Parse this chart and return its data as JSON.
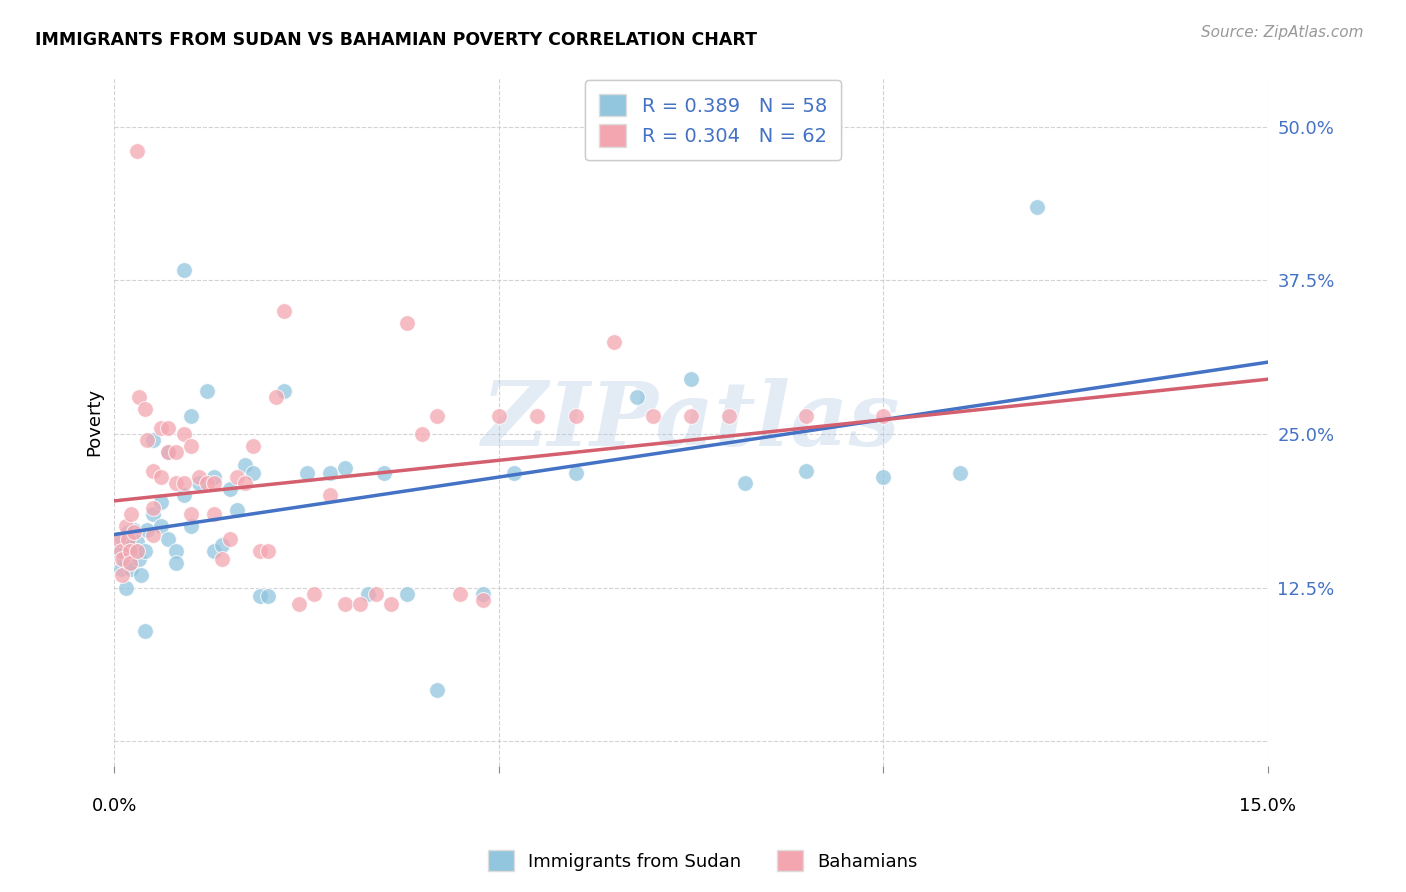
{
  "title": "IMMIGRANTS FROM SUDAN VS BAHAMIAN POVERTY CORRELATION CHART",
  "source": "Source: ZipAtlas.com",
  "ylabel": "Poverty",
  "blue_R": 0.389,
  "blue_N": 58,
  "pink_R": 0.304,
  "pink_N": 62,
  "blue_color": "#92c5de",
  "pink_color": "#f4a6b0",
  "blue_line_color": "#4472c4",
  "pink_line_color": "#d45f6e",
  "legend_label_blue": "Immigrants from Sudan",
  "legend_label_pink": "Bahamians",
  "watermark": "ZIPatlas",
  "watermark_color": "#a8c4e0",
  "background_color": "#ffffff",
  "grid_color": "#c8c8c8",
  "xlim": [
    0.0,
    0.15
  ],
  "ylim": [
    -0.02,
    0.54
  ],
  "yticks": [
    0.0,
    0.125,
    0.25,
    0.375,
    0.5
  ],
  "ytick_labels": [
    "",
    "12.5%",
    "25.0%",
    "37.5%",
    "50.0%"
  ],
  "xtick_positions": [
    0.0,
    0.05,
    0.1,
    0.15
  ],
  "blue_x": [
    0.0005,
    0.0008,
    0.001,
    0.0012,
    0.0015,
    0.0018,
    0.002,
    0.002,
    0.0022,
    0.0025,
    0.003,
    0.003,
    0.0032,
    0.0035,
    0.004,
    0.004,
    0.0042,
    0.005,
    0.005,
    0.006,
    0.006,
    0.007,
    0.007,
    0.008,
    0.008,
    0.009,
    0.009,
    0.01,
    0.01,
    0.011,
    0.012,
    0.013,
    0.013,
    0.014,
    0.015,
    0.016,
    0.017,
    0.018,
    0.019,
    0.02,
    0.022,
    0.025,
    0.028,
    0.03,
    0.033,
    0.035,
    0.038,
    0.042,
    0.048,
    0.052,
    0.06,
    0.068,
    0.075,
    0.082,
    0.09,
    0.1,
    0.11,
    0.12
  ],
  "blue_y": [
    0.155,
    0.14,
    0.165,
    0.148,
    0.125,
    0.17,
    0.158,
    0.145,
    0.14,
    0.172,
    0.162,
    0.155,
    0.148,
    0.135,
    0.09,
    0.155,
    0.172,
    0.245,
    0.185,
    0.195,
    0.175,
    0.235,
    0.165,
    0.155,
    0.145,
    0.383,
    0.2,
    0.265,
    0.175,
    0.21,
    0.285,
    0.215,
    0.155,
    0.16,
    0.205,
    0.188,
    0.225,
    0.218,
    0.118,
    0.118,
    0.285,
    0.218,
    0.218,
    0.222,
    0.12,
    0.218,
    0.12,
    0.042,
    0.12,
    0.218,
    0.218,
    0.28,
    0.295,
    0.21,
    0.22,
    0.215,
    0.218,
    0.435
  ],
  "pink_x": [
    0.0005,
    0.0008,
    0.001,
    0.001,
    0.0015,
    0.0018,
    0.002,
    0.002,
    0.0022,
    0.0025,
    0.003,
    0.003,
    0.0032,
    0.004,
    0.0042,
    0.005,
    0.005,
    0.005,
    0.006,
    0.006,
    0.007,
    0.007,
    0.008,
    0.008,
    0.009,
    0.009,
    0.01,
    0.01,
    0.011,
    0.012,
    0.013,
    0.013,
    0.014,
    0.015,
    0.016,
    0.017,
    0.018,
    0.019,
    0.02,
    0.021,
    0.022,
    0.024,
    0.026,
    0.028,
    0.03,
    0.032,
    0.034,
    0.036,
    0.038,
    0.04,
    0.042,
    0.045,
    0.048,
    0.05,
    0.055,
    0.06,
    0.065,
    0.07,
    0.075,
    0.08,
    0.09,
    0.1
  ],
  "pink_y": [
    0.165,
    0.155,
    0.148,
    0.135,
    0.175,
    0.165,
    0.155,
    0.145,
    0.185,
    0.17,
    0.48,
    0.155,
    0.28,
    0.27,
    0.245,
    0.22,
    0.19,
    0.168,
    0.255,
    0.215,
    0.255,
    0.235,
    0.21,
    0.235,
    0.25,
    0.21,
    0.24,
    0.185,
    0.215,
    0.21,
    0.21,
    0.185,
    0.148,
    0.165,
    0.215,
    0.21,
    0.24,
    0.155,
    0.155,
    0.28,
    0.35,
    0.112,
    0.12,
    0.2,
    0.112,
    0.112,
    0.12,
    0.112,
    0.34,
    0.25,
    0.265,
    0.12,
    0.115,
    0.265,
    0.265,
    0.265,
    0.325,
    0.265,
    0.265,
    0.265,
    0.265,
    0.265
  ]
}
